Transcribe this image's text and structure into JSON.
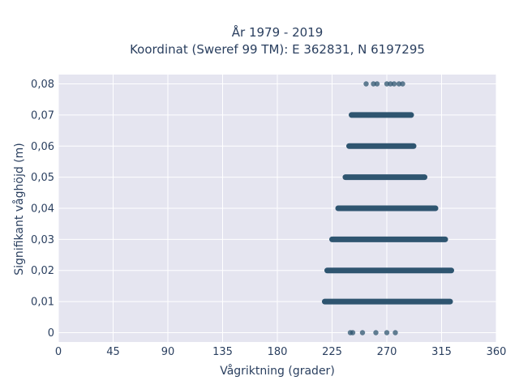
{
  "chart_data": {
    "type": "scatter",
    "title_line1": "År 1979 - 2019",
    "title_line2": "Koordinat (Sweref 99 TM): E 362831, N 6197295",
    "xlabel": "Vågriktning (grader)",
    "ylabel": "Signifikant våghöjd (m)",
    "xlim": [
      0,
      360
    ],
    "ylim": [
      -0.003,
      0.083
    ],
    "x_ticks": [
      0,
      45,
      90,
      135,
      180,
      225,
      270,
      315,
      360
    ],
    "x_tick_labels": [
      "0",
      "45",
      "90",
      "135",
      "180",
      "225",
      "270",
      "315",
      "360"
    ],
    "y_ticks": [
      0,
      0.01,
      0.02,
      0.03,
      0.04,
      0.05,
      0.06,
      0.07,
      0.08
    ],
    "y_tick_labels": [
      "0",
      "0,01",
      "0,02",
      "0,03",
      "0,04",
      "0,05",
      "0,06",
      "0,07",
      "0,08"
    ],
    "grid": true,
    "marker_color": "#2f5570",
    "plot_background": "#e5e5f0",
    "bands": [
      {
        "y": 0,
        "x_points": [
          240,
          242,
          250,
          261,
          270,
          277
        ]
      },
      {
        "y": 0.01,
        "x_range": [
          219,
          322
        ]
      },
      {
        "y": 0.02,
        "x_range": [
          221,
          323
        ]
      },
      {
        "y": 0.03,
        "x_range": [
          225,
          318
        ]
      },
      {
        "y": 0.04,
        "x_range": [
          230,
          310
        ]
      },
      {
        "y": 0.05,
        "x_range": [
          236,
          301
        ]
      },
      {
        "y": 0.06,
        "x_range": [
          239,
          292
        ]
      },
      {
        "y": 0.07,
        "x_range": [
          241,
          290
        ],
        "extra_points": [
          248,
          255,
          262,
          268,
          276,
          284
        ]
      },
      {
        "y": 0.08,
        "x_points": [
          253,
          259,
          262,
          270,
          273,
          276,
          280,
          283
        ]
      }
    ]
  }
}
